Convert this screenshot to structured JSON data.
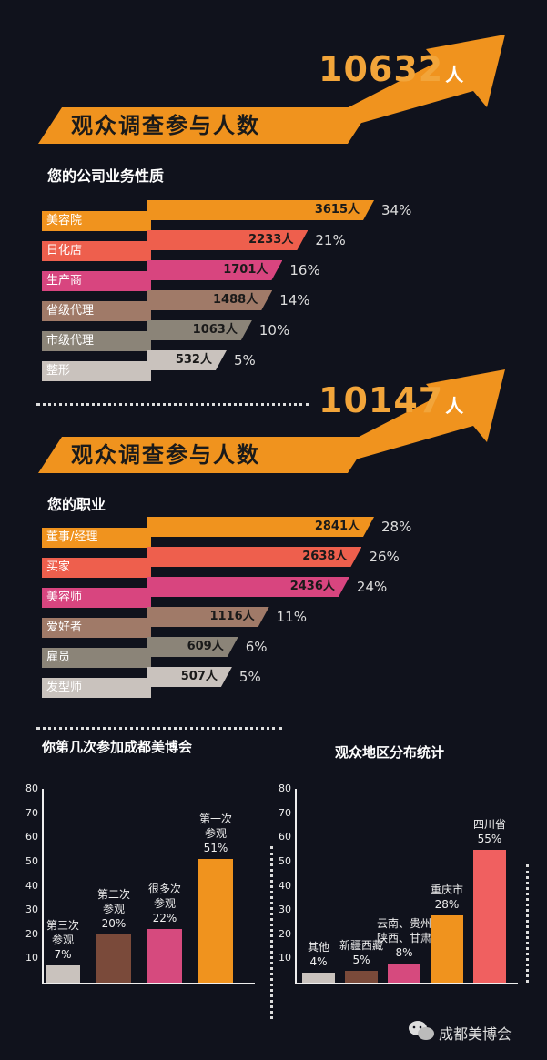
{
  "colors": {
    "orange": "#f0931e",
    "coral": "#ee5f4d",
    "magenta": "#d8457f",
    "taupe": "#a07a68",
    "grey": "#8b8478",
    "light": "#c9c2bd",
    "brown": "#7a4a3a",
    "pink": "#d64a7e",
    "red": "#f06060"
  },
  "section1": {
    "total": "10632",
    "unit": "人",
    "banner": "观众调查参与人数",
    "subtitle": "您的公司业务性质"
  },
  "section2": {
    "total": "10147",
    "unit": "人",
    "banner": "观众调查参与人数",
    "subtitle": "您的职业"
  },
  "chart3": {
    "title": "你第几次参加成都美博会"
  },
  "chart4": {
    "title": "观众地区分布统计"
  },
  "footer": {
    "brand": "成都美博会",
    "icon": "wechat-icon"
  },
  "chart_data": [
    {
      "type": "bar",
      "orientation": "horizontal",
      "title": "您的公司业务性质",
      "categories": [
        "美容院",
        "日化店",
        "生产商",
        "省级代理",
        "市级代理",
        "整形"
      ],
      "values": [
        3615,
        2233,
        1701,
        1488,
        1063,
        532
      ],
      "value_labels": [
        "3615人",
        "2233人",
        "1701人",
        "1488人",
        "1063人",
        "532人"
      ],
      "percent_labels": [
        "34%",
        "21%",
        "16%",
        "14%",
        "10%",
        "5%"
      ],
      "colors": [
        "#f0931e",
        "#ee5f4d",
        "#d8457f",
        "#a07a68",
        "#8b8478",
        "#c9c2bd"
      ]
    },
    {
      "type": "bar",
      "orientation": "horizontal",
      "title": "您的职业",
      "categories": [
        "董事/经理",
        "买家",
        "美容师",
        "爱好者",
        "雇员",
        "发型师"
      ],
      "values": [
        2841,
        2638,
        2436,
        1116,
        609,
        507
      ],
      "value_labels": [
        "2841人",
        "2638人",
        "2436人",
        "1116人",
        "609人",
        "507人"
      ],
      "percent_labels": [
        "28%",
        "26%",
        "24%",
        "11%",
        "6%",
        "5%"
      ],
      "colors": [
        "#f0931e",
        "#ee5f4d",
        "#d8457f",
        "#a07a68",
        "#8b8478",
        "#c9c2bd"
      ]
    },
    {
      "type": "bar",
      "title": "你第几次参加成都美博会",
      "categories": [
        "第三次参观",
        "第二次参观",
        "很多次参观",
        "第一次参观"
      ],
      "label_lines": [
        [
          "第三次",
          "参观",
          "7%"
        ],
        [
          "第二次",
          "参观",
          "20%"
        ],
        [
          "很多次",
          "参观",
          "22%"
        ],
        [
          "第一次",
          "参观",
          "51%"
        ]
      ],
      "values": [
        7,
        20,
        22,
        51
      ],
      "ylim": [
        0,
        80
      ],
      "yticks": [
        10,
        20,
        30,
        40,
        50,
        60,
        70,
        80
      ],
      "colors": [
        "#c9c2bd",
        "#7a4a3a",
        "#d64a7e",
        "#f0931e"
      ]
    },
    {
      "type": "bar",
      "title": "观众地区分布统计",
      "categories": [
        "其他",
        "新疆西藏",
        "云南、贵州 陕西、甘肃",
        "重庆市",
        "四川省"
      ],
      "label_lines": [
        [
          "其他",
          "4%"
        ],
        [
          "新疆西藏",
          "5%"
        ],
        [
          "云南、贵州",
          "陕西、甘肃",
          "8%"
        ],
        [
          "重庆市",
          "28%"
        ],
        [
          "四川省",
          "55%"
        ]
      ],
      "values": [
        4,
        5,
        8,
        28,
        55
      ],
      "ylim": [
        0,
        80
      ],
      "yticks": [
        10,
        20,
        30,
        40,
        50,
        60,
        70,
        80
      ],
      "colors": [
        "#c9c2bd",
        "#7a4a3a",
        "#d64a7e",
        "#f0931e",
        "#f06060"
      ]
    }
  ]
}
